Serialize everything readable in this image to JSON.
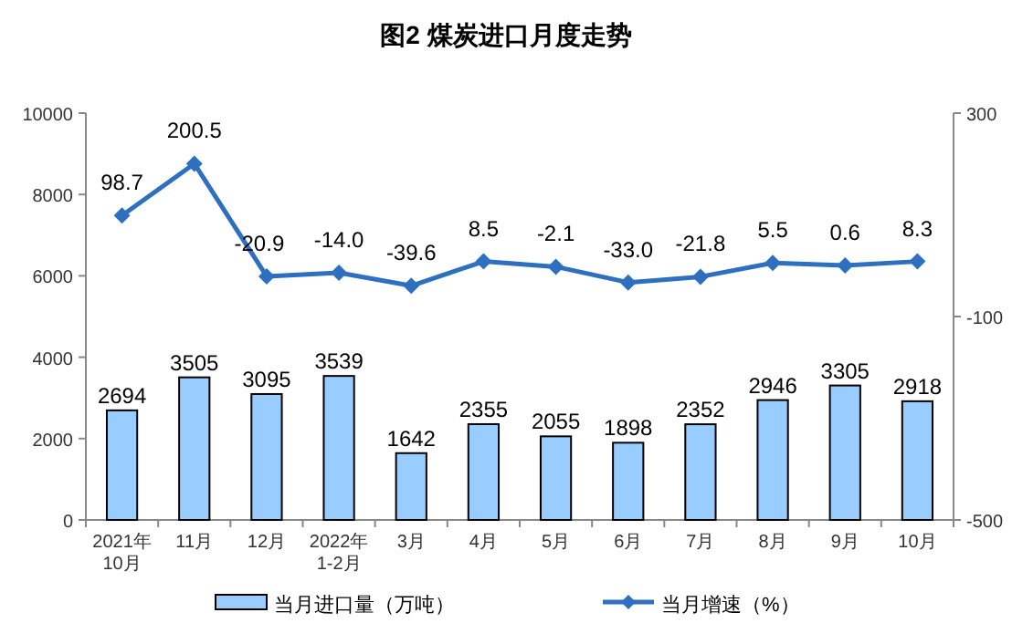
{
  "chart_data": {
    "type": "bar",
    "title": "图2 煤炭进口月度走势",
    "categories": [
      "2021年\n10月",
      "11月",
      "12月",
      "2022年\n1-2月",
      "3月",
      "4月",
      "5月",
      "6月",
      "7月",
      "8月",
      "9月",
      "10月"
    ],
    "series": [
      {
        "name": "当月进口量（万吨）",
        "color": "#99ccff",
        "values": [
          2694,
          3505,
          3095,
          3539,
          1642,
          2355,
          2055,
          1898,
          2352,
          2946,
          3305,
          2918
        ]
      },
      {
        "name": "当月增速（%）",
        "type": "line",
        "axis": "y2",
        "color": "#2e6fc0",
        "marker": "diamond",
        "values": [
          98.7,
          200.5,
          -20.9,
          -14.0,
          -39.6,
          8.5,
          -2.1,
          -33.0,
          -21.8,
          5.5,
          0.6,
          8.3
        ],
        "value_labels": [
          "98.7",
          "200.5",
          "-20.9",
          "-14.0",
          "-39.6",
          "8.5",
          "-2.1",
          "-33.0",
          "-21.8",
          "5.5",
          "0.6",
          "8.3"
        ]
      }
    ],
    "ylim": [
      0,
      10000
    ],
    "yticks": [
      0,
      2000,
      4000,
      6000,
      8000,
      10000
    ],
    "y2lim": [
      -500,
      300
    ],
    "y2ticks": [
      -500,
      -100,
      300
    ],
    "data_labels": true,
    "grid": false,
    "legend": "bottom"
  }
}
